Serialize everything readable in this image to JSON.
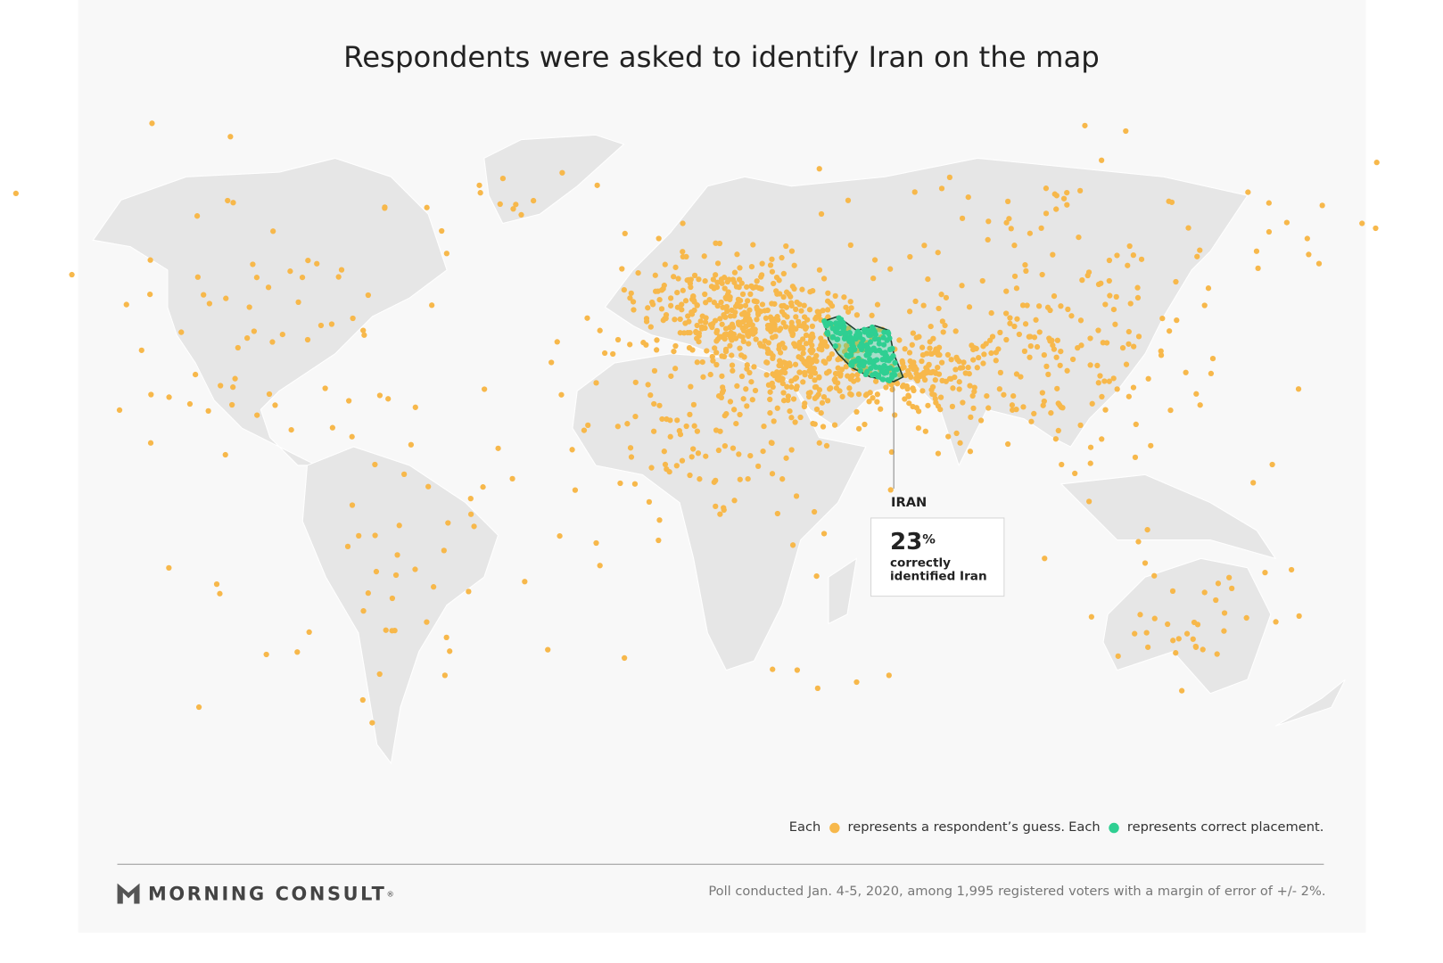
{
  "title": "Respondents were asked to identify Iran on the map",
  "callout": {
    "label": "IRAN",
    "value": "23",
    "unit": "%",
    "text_line1": "correctly",
    "text_line2": "identified Iran"
  },
  "legend": [
    {
      "lead": "Each",
      "text": "represents a respondent’s guess.",
      "color": "#f7b84b"
    },
    {
      "lead": "Each",
      "text": "represents correct placement.",
      "color": "#2fcf92"
    }
  ],
  "footer": {
    "logo": "MORNING CONSULT",
    "logo_mark": "®",
    "note": "Poll conducted Jan. 4-5, 2020, among 1,995 registered voters with a margin of error of +/- 2%."
  }
}
